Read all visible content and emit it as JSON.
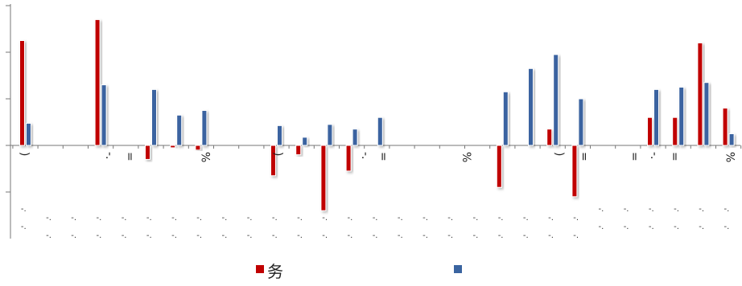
{
  "chart_data": {
    "type": "bar",
    "title": "",
    "xlabel": "",
    "ylabel": "",
    "ylim": [
      -4,
      6
    ],
    "grid": false,
    "legend_position": "bottom-center",
    "colors": {
      "series_a": "#C00000",
      "series_b": "#3A64A0"
    },
    "categories": [
      "",
      "",
      "",
      "",
      "",
      "",
      "",
      "",
      "",
      "",
      "",
      "",
      "",
      "",
      "",
      "",
      "",
      "",
      "",
      "",
      "",
      "",
      "",
      "",
      "",
      "",
      "",
      "",
      ""
    ],
    "series": [
      {
        "name": "务",
        "values": [
          4.5,
          0,
          0,
          5.4,
          0,
          -0.6,
          -0.1,
          -0.2,
          0,
          0,
          -1.3,
          -0.4,
          -2.8,
          -1.1,
          0,
          0,
          0,
          0,
          0,
          -1.8,
          0,
          0.7,
          -2.2,
          0,
          0,
          1.2,
          1.2,
          4.4,
          1.6
        ]
      },
      {
        "name": "",
        "values": [
          0.95,
          0,
          0,
          2.6,
          0,
          2.4,
          1.3,
          1.5,
          0,
          0,
          0.85,
          0.35,
          0.9,
          0.7,
          1.2,
          0,
          0,
          0,
          0,
          2.3,
          3.3,
          3.9,
          2.0,
          0,
          0,
          2.4,
          2.5,
          2.7,
          0.5
        ]
      }
    ],
    "tick_marks": [
      {
        "slot": 0,
        "text": ")"
      },
      {
        "slot": 3.4,
        "text": "-."
      },
      {
        "slot": 4.2,
        "text": "="
      },
      {
        "slot": 7.2,
        "text": "%"
      },
      {
        "slot": 10.1,
        "text": ")"
      },
      {
        "slot": 13.6,
        "text": "-."
      },
      {
        "slot": 14.3,
        "text": "="
      },
      {
        "slot": 17.6,
        "text": "%"
      },
      {
        "slot": 21.3,
        "text": ")"
      },
      {
        "slot": 22.3,
        "text": "="
      },
      {
        "slot": 24.3,
        "text": "="
      },
      {
        "slot": 25.1,
        "text": "-."
      },
      {
        "slot": 25.9,
        "text": "="
      },
      {
        "slot": 28.1,
        "text": "%"
      }
    ],
    "label_fragment": "-."
  }
}
